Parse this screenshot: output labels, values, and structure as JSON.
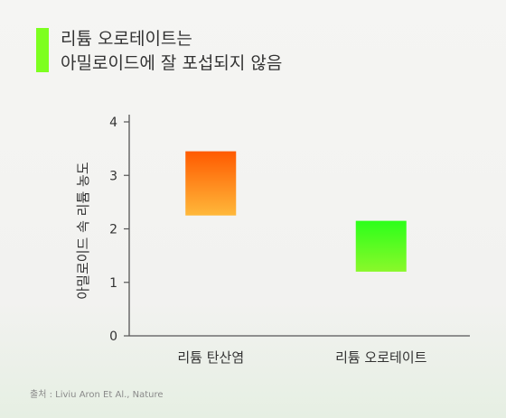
{
  "title": {
    "line1": "리튬 오로테이트는",
    "line2": "아밀로이드에 잘 포섭되지 않음"
  },
  "colors": {
    "accent": "#7dff1f",
    "axis": "#555555",
    "text": "#333333"
  },
  "chart_data": {
    "type": "bar",
    "subtype": "floating-range",
    "categories": [
      "리튬 탄산염",
      "리튬 오로테이트"
    ],
    "ranges": [
      {
        "low": 2.25,
        "high": 3.45
      },
      {
        "low": 1.2,
        "high": 2.15
      }
    ],
    "bar_gradients": [
      {
        "top": "#ff5a00",
        "bottom": "#ffb83a"
      },
      {
        "top": "#2cff1a",
        "bottom": "#8af82a"
      }
    ],
    "ylabel": "아밀로이드 속 리튬 농도",
    "xlabel": "",
    "ylim": [
      0,
      4
    ],
    "yticks": [
      0,
      1,
      2,
      3,
      4
    ],
    "grid": false,
    "legend": "none"
  },
  "source": "출처 : Liviu Aron Et Al., Nature"
}
